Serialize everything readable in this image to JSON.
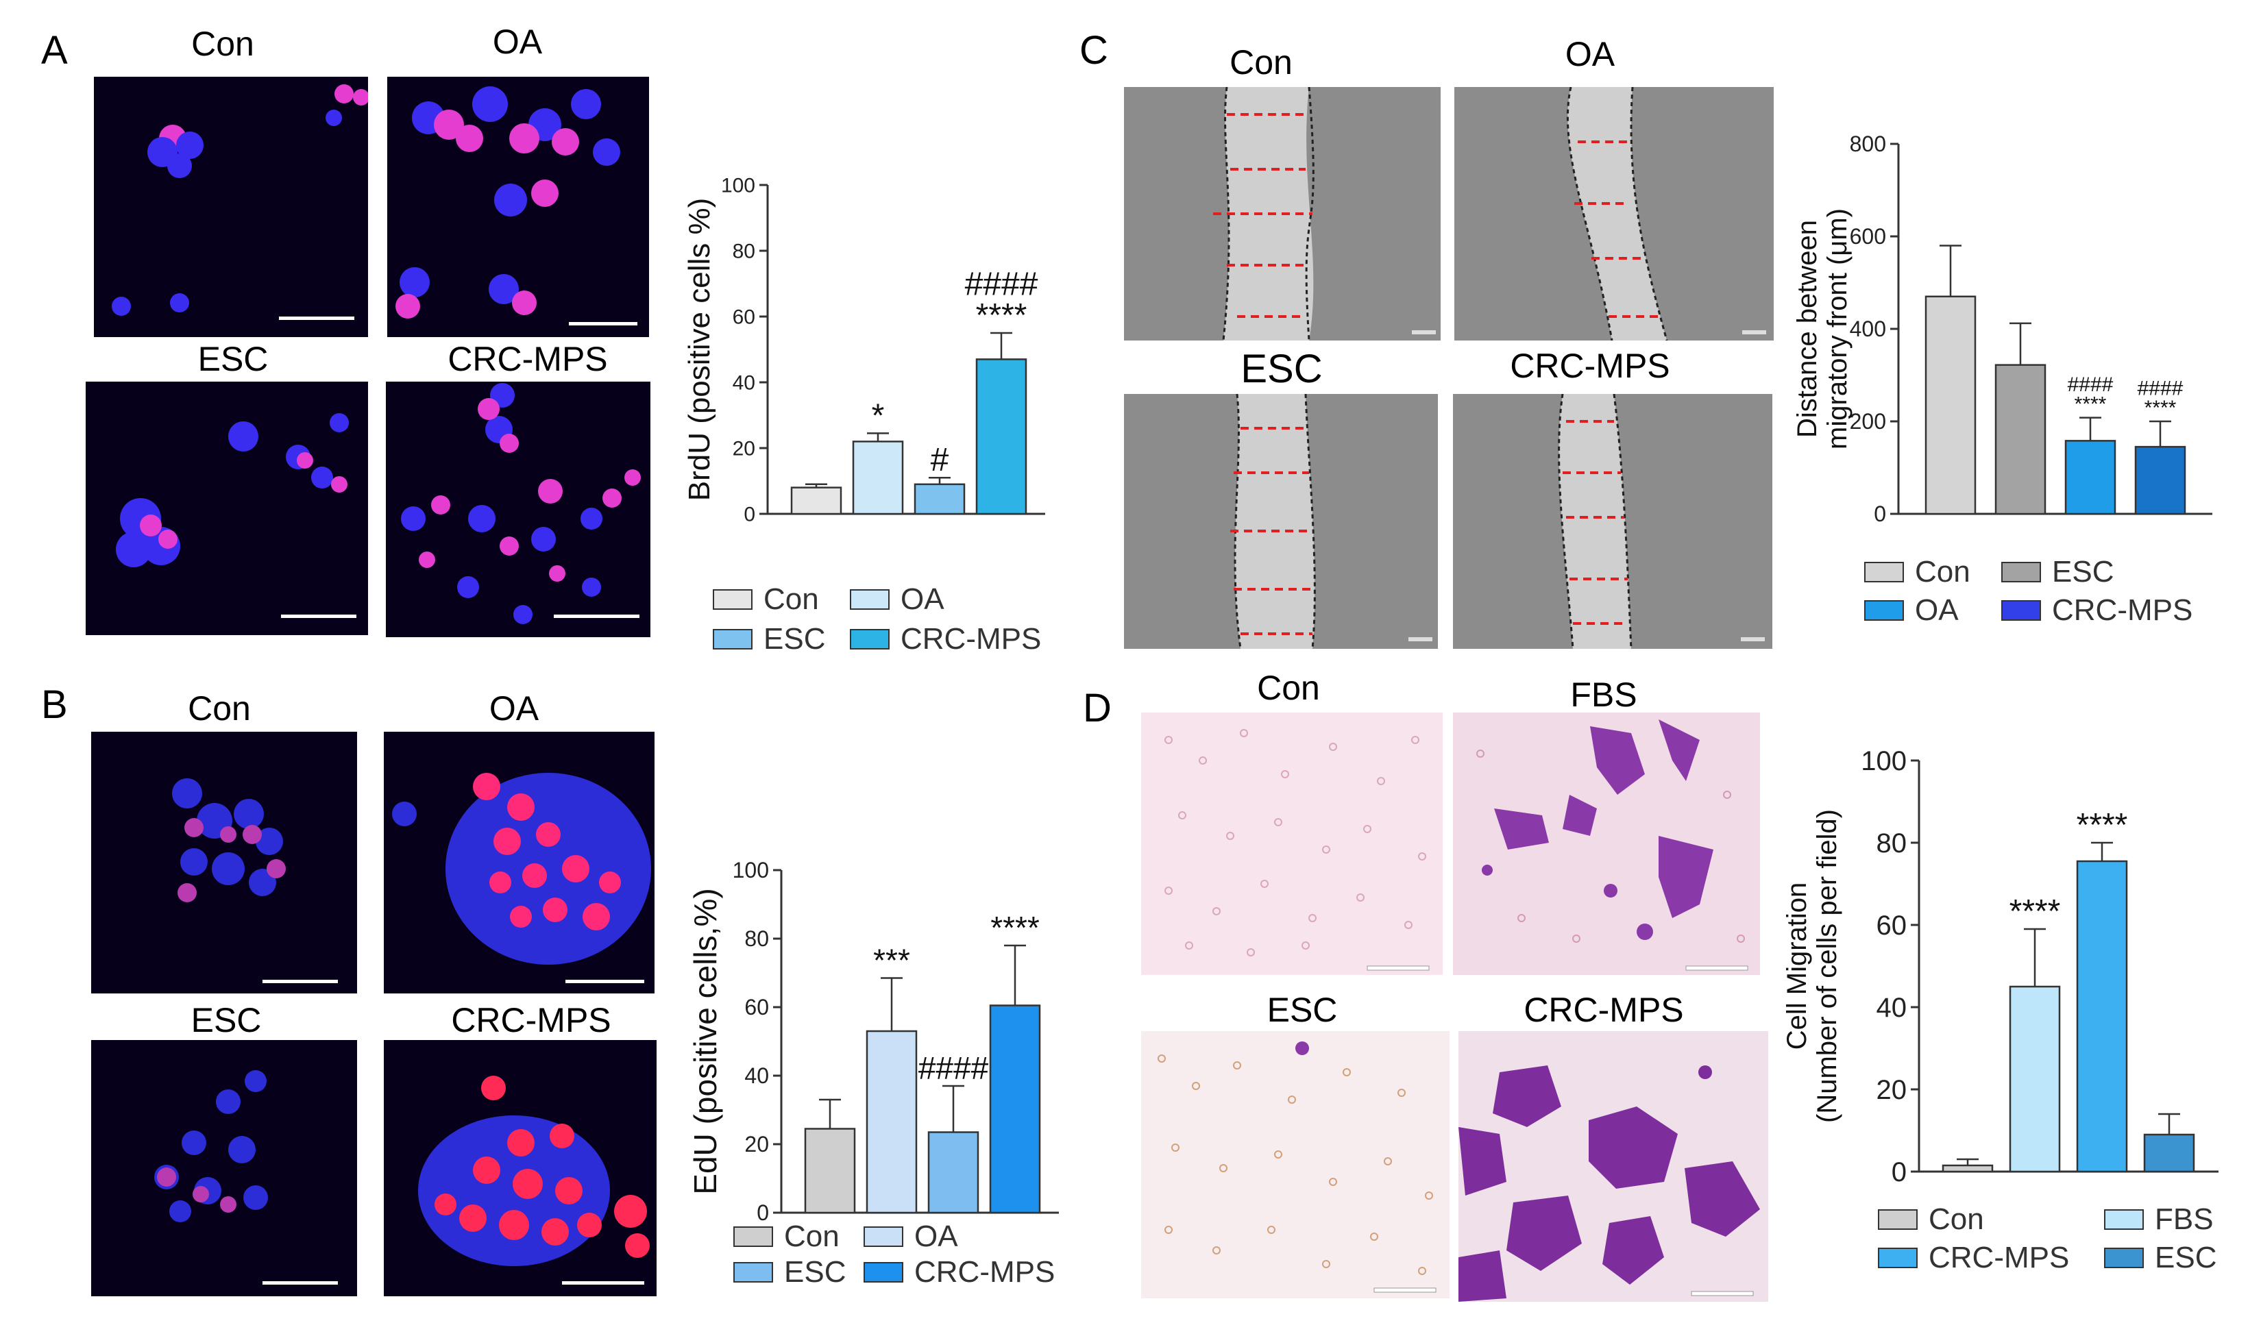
{
  "panels": {
    "A": {
      "letter": "A",
      "image_labels": [
        "Con",
        "OA",
        "ESC",
        "CRC-MPS"
      ],
      "legend": [
        "Con",
        "OA",
        "ESC",
        "CRC-MPS"
      ]
    },
    "B": {
      "letter": "B",
      "image_labels": [
        "Con",
        "OA",
        "ESC",
        "CRC-MPS"
      ],
      "legend": [
        "Con",
        "OA",
        "ESC",
        "CRC-MPS"
      ]
    },
    "C": {
      "letter": "C",
      "image_labels": [
        "Con",
        "OA",
        "ESC",
        "CRC-MPS"
      ],
      "legend": [
        "Con",
        "ESC",
        "OA",
        "CRC-MPS"
      ]
    },
    "D": {
      "letter": "D",
      "image_labels": [
        "Con",
        "FBS",
        "ESC",
        "CRC-MPS"
      ],
      "legend": [
        "Con",
        "FBS",
        "CRC-MPS",
        "ESC"
      ]
    }
  },
  "colors": {
    "con": "#e6e6e6",
    "oa_light": "#cde9f9",
    "esc_blue": "#7ec2f0",
    "crc_cyan": "#2eb3e6",
    "c_con": "#d4d4d4",
    "c_esc": "#a3a3a3",
    "c_oa": "#1f9de8",
    "c_crc": "#1874c8",
    "b_con": "#cfcfcf",
    "b_oa": "#c9e0f7",
    "b_esc": "#7dbdf0",
    "b_crc": "#1e90ee",
    "d_con": "#cfcfcf",
    "d_fbs": "#bde6fb",
    "d_crc": "#3cb0f0",
    "d_esc": "#3b93cf"
  },
  "chart_data": [
    {
      "id": "A",
      "type": "bar",
      "ylabel": "BrdU (positive cells %)",
      "ylim": [
        0,
        100
      ],
      "yticks": [
        0,
        20,
        40,
        60,
        80,
        100
      ],
      "categories": [
        "Con",
        "OA",
        "ESC",
        "CRC-MPS"
      ],
      "values": [
        8,
        22,
        9,
        47
      ],
      "errors": [
        1,
        2.5,
        2,
        8
      ],
      "annotations": [
        "",
        "*",
        "#",
        "####\n****"
      ]
    },
    {
      "id": "B",
      "type": "bar",
      "ylabel": "EdU (positive cells,%)",
      "ylim": [
        0,
        100
      ],
      "yticks": [
        0,
        20,
        40,
        60,
        80,
        100
      ],
      "categories": [
        "Con",
        "OA",
        "ESC",
        "CRC-MPS"
      ],
      "values": [
        24.5,
        53,
        23.5,
        60.5
      ],
      "errors": [
        8.5,
        15.5,
        13.5,
        17.5
      ],
      "annotations": [
        "",
        "***",
        "####",
        "****"
      ]
    },
    {
      "id": "C",
      "type": "bar",
      "ylabel": "Distance between\nmigratory front (μm)",
      "ylim": [
        0,
        800
      ],
      "yticks": [
        0,
        200,
        400,
        600,
        800
      ],
      "categories": [
        "Con",
        "ESC",
        "OA",
        "CRC-MPS"
      ],
      "values": [
        470,
        322,
        158,
        145
      ],
      "errors": [
        110,
        90,
        50,
        55
      ],
      "annotations": [
        "",
        "",
        "####\n****",
        "####\n****"
      ]
    },
    {
      "id": "D",
      "type": "bar",
      "ylabel": "Cell Migration\n(Number of cells per field)",
      "ylim": [
        0,
        100
      ],
      "yticks": [
        0,
        20,
        40,
        60,
        80,
        100
      ],
      "categories": [
        "Con",
        "FBS",
        "CRC-MPS",
        "ESC"
      ],
      "values": [
        1.5,
        45,
        75.5,
        9
      ],
      "errors": [
        1.5,
        14,
        4.5,
        5
      ],
      "annotations": [
        "",
        "****",
        "****",
        ""
      ]
    }
  ]
}
